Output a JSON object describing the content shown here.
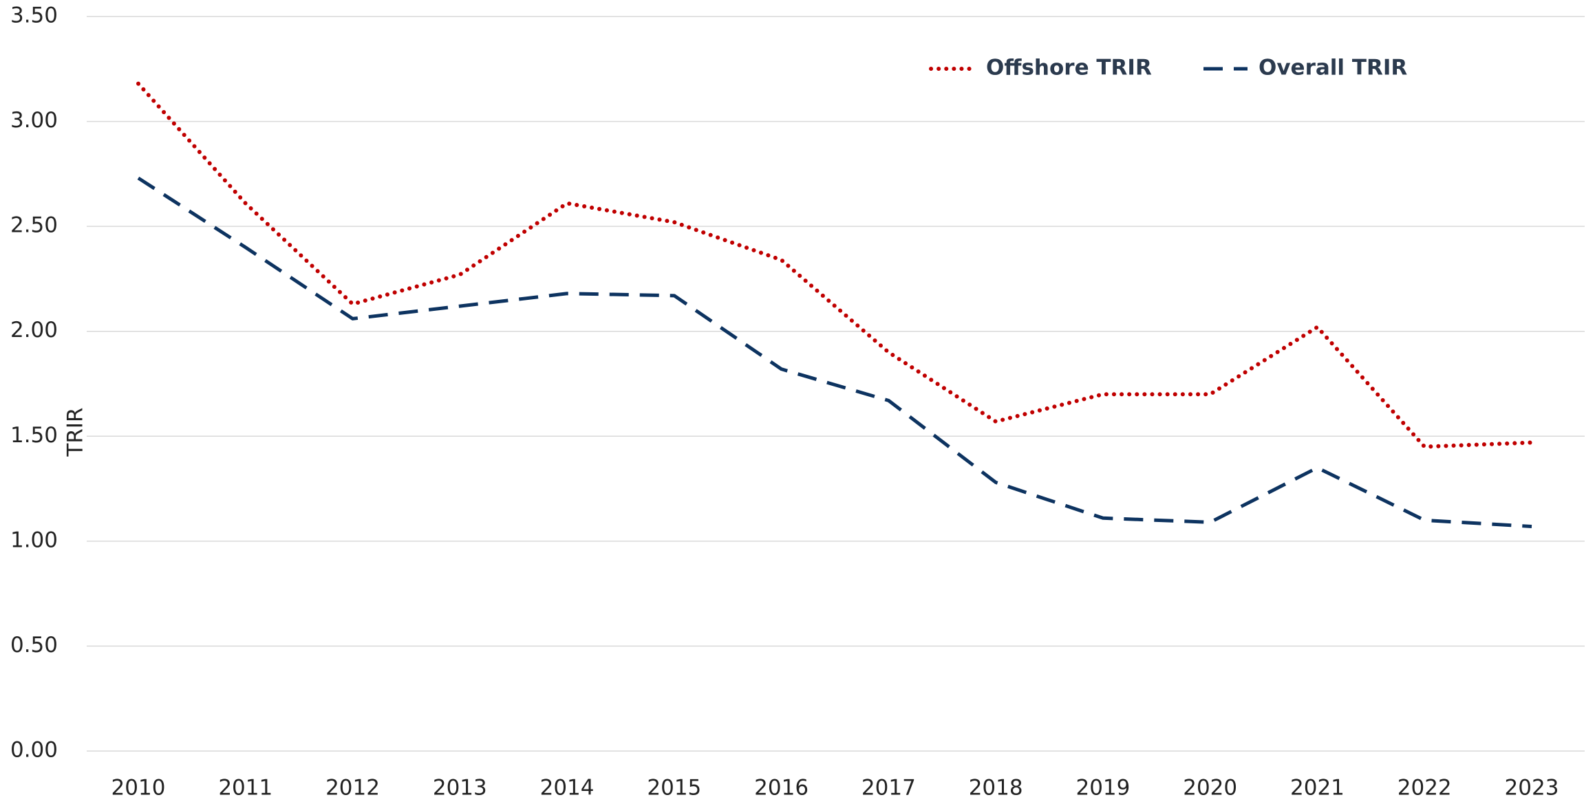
{
  "chart_data": {
    "type": "line",
    "y_label": "TRIR",
    "categories": [
      "2010",
      "2011",
      "2012",
      "2013",
      "2014",
      "2015",
      "2016",
      "2017",
      "2018",
      "2019",
      "2020",
      "2021",
      "2022",
      "2023"
    ],
    "series": [
      {
        "name": "Offshore TRIR",
        "color": "#c00000",
        "dash": "dotted",
        "values": [
          3.18,
          2.61,
          2.13,
          2.27,
          2.61,
          2.52,
          2.34,
          1.9,
          1.57,
          1.7,
          1.7,
          2.02,
          1.45,
          1.47
        ]
      },
      {
        "name": "Overall TRIR",
        "color": "#0d3360",
        "dash": "dashed",
        "values": [
          2.73,
          2.4,
          2.06,
          2.12,
          2.18,
          2.17,
          1.82,
          1.67,
          1.28,
          1.11,
          1.09,
          1.35,
          1.1,
          1.07
        ]
      }
    ],
    "ylim": [
      0,
      3.5
    ],
    "yticks": [
      {
        "value": 0,
        "label": "0.00"
      },
      {
        "value": 0.5,
        "label": "0.50"
      },
      {
        "value": 1,
        "label": "1.00"
      },
      {
        "value": 1.5,
        "label": "1.50"
      },
      {
        "value": 2,
        "label": "2.00"
      },
      {
        "value": 2.5,
        "label": "2.50"
      },
      {
        "value": 3,
        "label": "3.00"
      },
      {
        "value": 3.5,
        "label": "3.50"
      }
    ],
    "grid": true,
    "legend": "top-right"
  }
}
